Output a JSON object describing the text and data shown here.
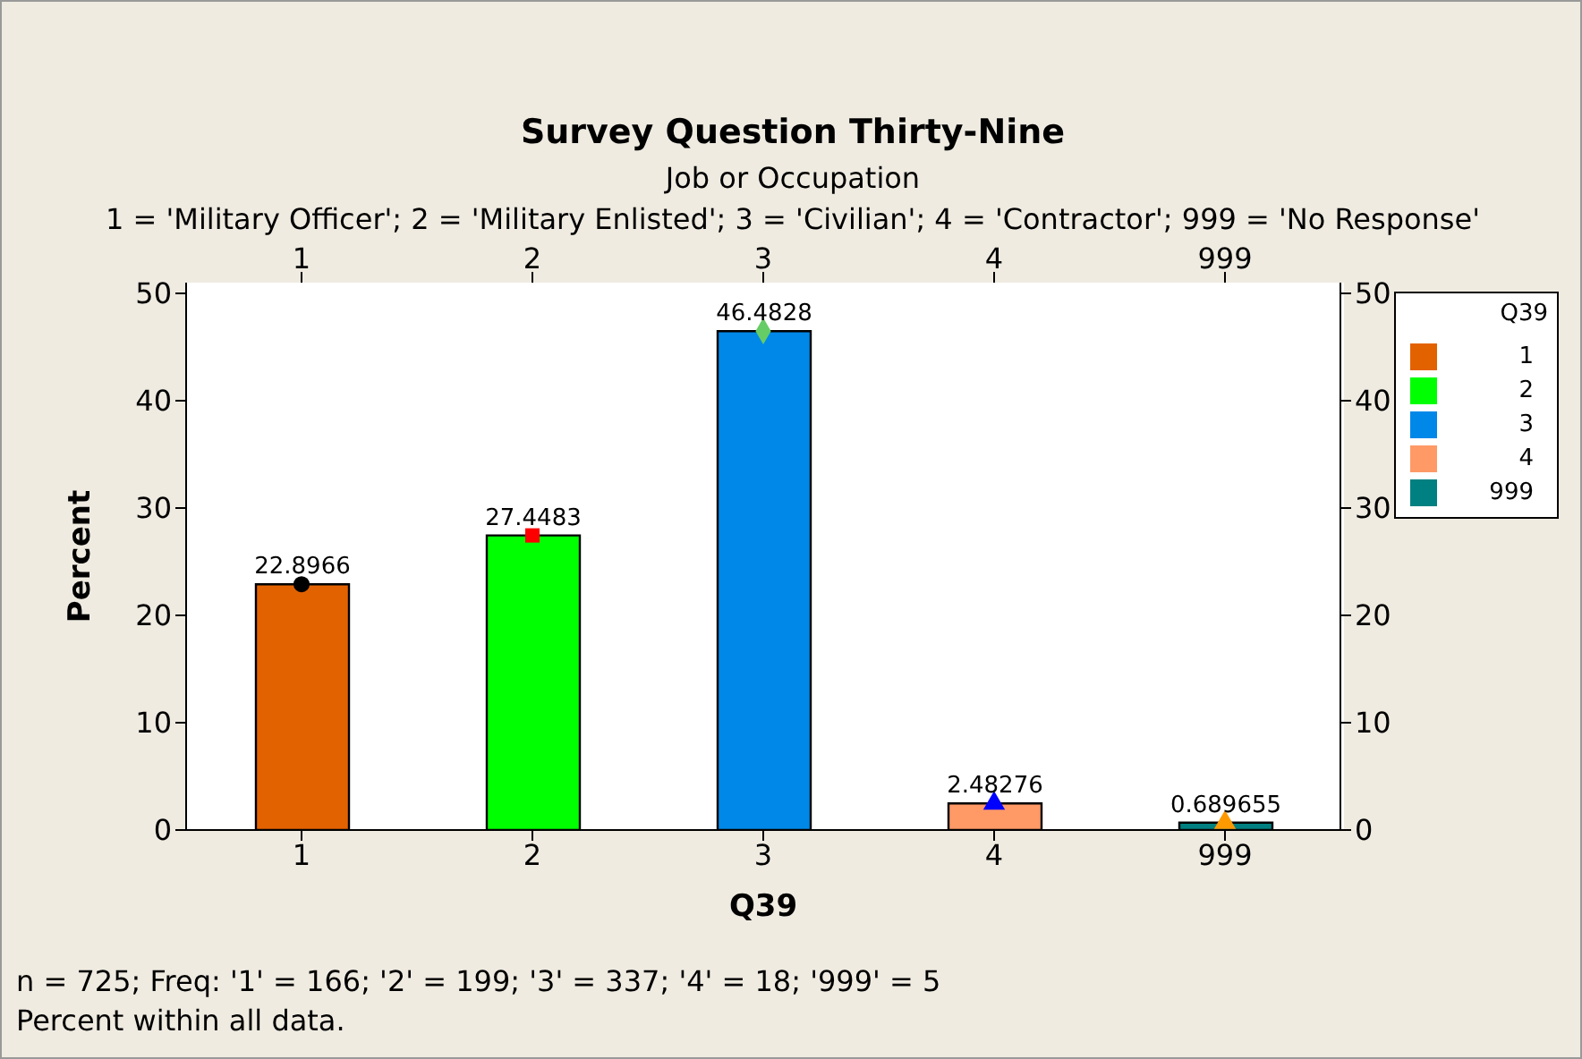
{
  "chart_data": {
    "type": "bar",
    "title": "Survey Question Thirty-Nine",
    "subtitle": "Job or Occupation",
    "xlabel": "Q39",
    "ylabel": "Percent",
    "legend_title": "Q39",
    "legend": "right",
    "categories": [
      "1",
      "2",
      "3",
      "4",
      "999"
    ],
    "series": [
      {
        "type": "bar",
        "name": "1",
        "color": "#e36200",
        "values": [
          22.8966,
          null,
          null,
          null,
          null
        ],
        "value_labels": [
          "22.8966",
          null,
          null,
          null,
          null
        ]
      },
      {
        "type": "bar",
        "name": "2",
        "color": "#00ff00",
        "values": [
          null,
          27.4483,
          null,
          null,
          null
        ],
        "value_labels": [
          null,
          "27.4483",
          null,
          null,
          null
        ]
      },
      {
        "type": "bar",
        "name": "3",
        "color": "#0088e8",
        "values": [
          null,
          null,
          46.4828,
          null,
          null
        ],
        "value_labels": [
          null,
          null,
          "46.4828",
          null,
          null
        ]
      },
      {
        "type": "bar",
        "name": "4",
        "color": "#ff9966",
        "values": [
          null,
          null,
          null,
          2.48276,
          null
        ],
        "value_labels": [
          null,
          null,
          null,
          "2.48276",
          null
        ]
      },
      {
        "type": "bar",
        "name": "999",
        "color": "#008080",
        "values": [
          null,
          null,
          null,
          null,
          0.689655
        ],
        "value_labels": [
          null,
          null,
          null,
          null,
          "0.689655"
        ]
      },
      {
        "type": "scatter",
        "x": [
          "1"
        ],
        "values": [
          22.8966
        ],
        "color": "#000000",
        "marker": "circle"
      },
      {
        "type": "scatter",
        "x": [
          "2"
        ],
        "values": [
          27.4483
        ],
        "color": "#ff0000",
        "marker": "square"
      },
      {
        "type": "scatter",
        "x": [
          "3"
        ],
        "values": [
          46.4828
        ],
        "color": "#66cc66",
        "marker": "diamond"
      },
      {
        "type": "scatter",
        "x": [
          "4"
        ],
        "values": [
          2.48276
        ],
        "color": "#0000ff",
        "marker": "triangle"
      },
      {
        "type": "scatter",
        "x": [
          "999"
        ],
        "values": [
          0.689655
        ],
        "color": "#ff9900",
        "marker": "triangle"
      }
    ],
    "ylim": [
      0,
      51
    ],
    "yticks": [
      0,
      10,
      20,
      30,
      40,
      50
    ],
    "y2lim": [
      0,
      51
    ],
    "y2ticks": [
      0,
      10,
      20,
      30,
      40,
      50
    ],
    "grid": false,
    "annotations": [
      "1 = 'Military Officer'; 2 = 'Military Enlisted'; 3 = 'Civilian'; 4 = 'Contractor'; 999 = 'No Response'",
      "n = 725; Freq: '1' = 166; '2' = 199; '3' = 337; '4' = 18; '999' = 5",
      "Percent within all data."
    ]
  }
}
